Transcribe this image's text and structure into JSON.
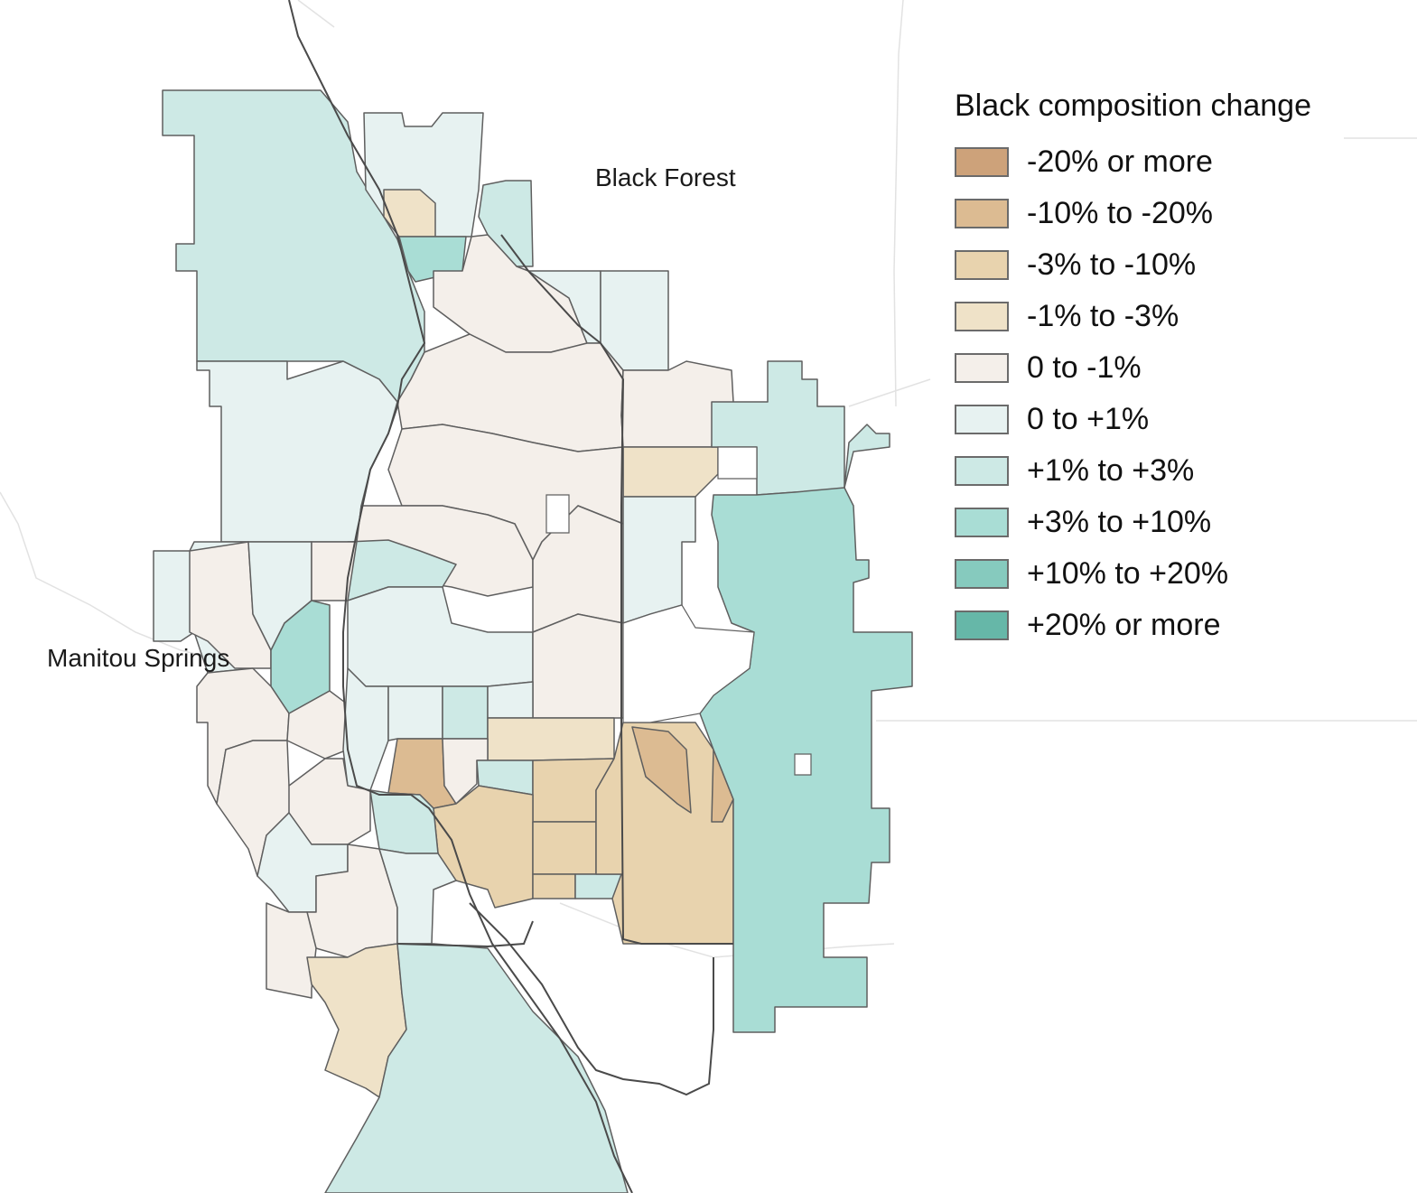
{
  "places": {
    "black_forest": "Black Forest",
    "manitou_springs": "Manitou Springs"
  },
  "legend": {
    "title": "Black composition change",
    "items": [
      {
        "label": "-20% or more",
        "color": "#cda27a"
      },
      {
        "label": "-10% to -20%",
        "color": "#dcbb92"
      },
      {
        "label": "-3% to -10%",
        "color": "#e8d3ae"
      },
      {
        "label": "-1% to -3%",
        "color": "#efe2c8"
      },
      {
        "label": "0 to -1%",
        "color": "#f4efea"
      },
      {
        "label": "0 to +1%",
        "color": "#e7f2f1"
      },
      {
        "label": "+1% to +3%",
        "color": "#cde9e5"
      },
      {
        "label": "+3% to +10%",
        "color": "#a9ddd5"
      },
      {
        "label": "+10% to +20%",
        "color": "#86cabe"
      },
      {
        "label": "+20% or more",
        "color": "#66b7a8"
      }
    ]
  }
}
